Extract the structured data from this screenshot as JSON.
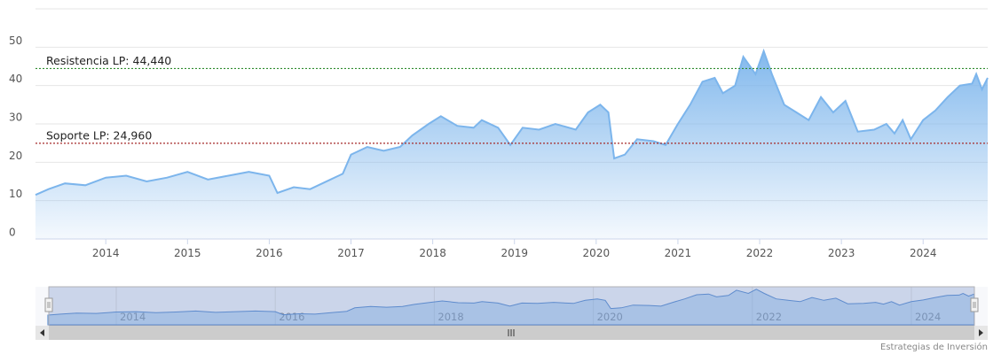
{
  "chart_data": {
    "type": "area",
    "x": [
      2013.14,
      2013.3,
      2013.5,
      2013.75,
      2014.0,
      2014.25,
      2014.5,
      2014.75,
      2015.0,
      2015.25,
      2015.5,
      2015.75,
      2016.0,
      2016.1,
      2016.3,
      2016.5,
      2016.75,
      2016.9,
      2017.0,
      2017.2,
      2017.4,
      2017.6,
      2017.75,
      2017.95,
      2018.1,
      2018.3,
      2018.5,
      2018.6,
      2018.8,
      2018.95,
      2019.1,
      2019.3,
      2019.5,
      2019.75,
      2019.9,
      2020.05,
      2020.15,
      2020.22,
      2020.35,
      2020.5,
      2020.7,
      2020.85,
      2021.0,
      2021.15,
      2021.3,
      2021.45,
      2021.55,
      2021.7,
      2021.8,
      2021.95,
      2022.05,
      2022.15,
      2022.3,
      2022.45,
      2022.6,
      2022.75,
      2022.9,
      2023.05,
      2023.2,
      2023.4,
      2023.55,
      2023.65,
      2023.75,
      2023.85,
      2024.0,
      2024.15,
      2024.3,
      2024.45,
      2024.6,
      2024.65,
      2024.72,
      2024.79
    ],
    "values": [
      11.5,
      13,
      14.5,
      14,
      16,
      16.5,
      15,
      16,
      17.5,
      15.5,
      16.5,
      17.5,
      16.5,
      12,
      13.5,
      13,
      15.5,
      17,
      22,
      24,
      23,
      24,
      27,
      30,
      32,
      29.5,
      29,
      31,
      29,
      24.5,
      29,
      28.5,
      30,
      28.5,
      33,
      35,
      33,
      21,
      22,
      26,
      25.5,
      24.5,
      30,
      35,
      41,
      42,
      38,
      40,
      47.5,
      43,
      49,
      43,
      35,
      33,
      31,
      37,
      33,
      36,
      28,
      28.5,
      30,
      27.5,
      31,
      26,
      31,
      33.5,
      37,
      40,
      40.5,
      43,
      39,
      42
    ],
    "color": "#7cb5ec",
    "xlim": [
      2013.14,
      2024.79
    ],
    "xticks": [
      2014,
      2015,
      2016,
      2017,
      2018,
      2019,
      2020,
      2021,
      2022,
      2023,
      2024
    ],
    "ylim": [
      0,
      60
    ],
    "yticks": [
      0,
      10,
      20,
      30,
      40,
      50
    ],
    "grid": true,
    "annotations": [
      {
        "label": "Resistencia LP: 44,440",
        "value": 44.44,
        "color": "#2e8b2e"
      },
      {
        "label": "Soporte LP: 24,960",
        "value": 24.96,
        "color": "#a52a2a"
      }
    ],
    "navigator_xticks": [
      2014,
      2016,
      2018,
      2020,
      2022,
      2024
    ],
    "credits": "Estrategias de Inversión"
  }
}
